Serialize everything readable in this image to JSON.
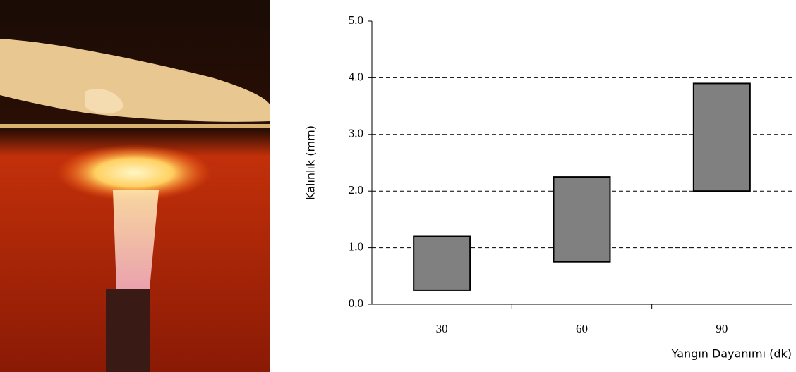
{
  "chart_data": {
    "type": "floating-bar",
    "y_label": "Kalınlık (mm)",
    "x_label": "Yangın Dayanımı (dk)",
    "categories": [
      "30",
      "60",
      "90"
    ],
    "low": [
      0.25,
      0.75,
      2.0
    ],
    "high": [
      1.2,
      2.25,
      3.9
    ],
    "color": "#808080",
    "ylim": [
      0,
      5
    ],
    "yticks": [
      {
        "value": 0,
        "label": "0.0"
      },
      {
        "value": 1,
        "label": "1.0"
      },
      {
        "value": 2,
        "label": "2.0"
      },
      {
        "value": 3,
        "label": "3.0"
      },
      {
        "value": 4,
        "label": "4.0"
      },
      {
        "value": 5,
        "label": "5.0"
      }
    ],
    "grid": true
  }
}
